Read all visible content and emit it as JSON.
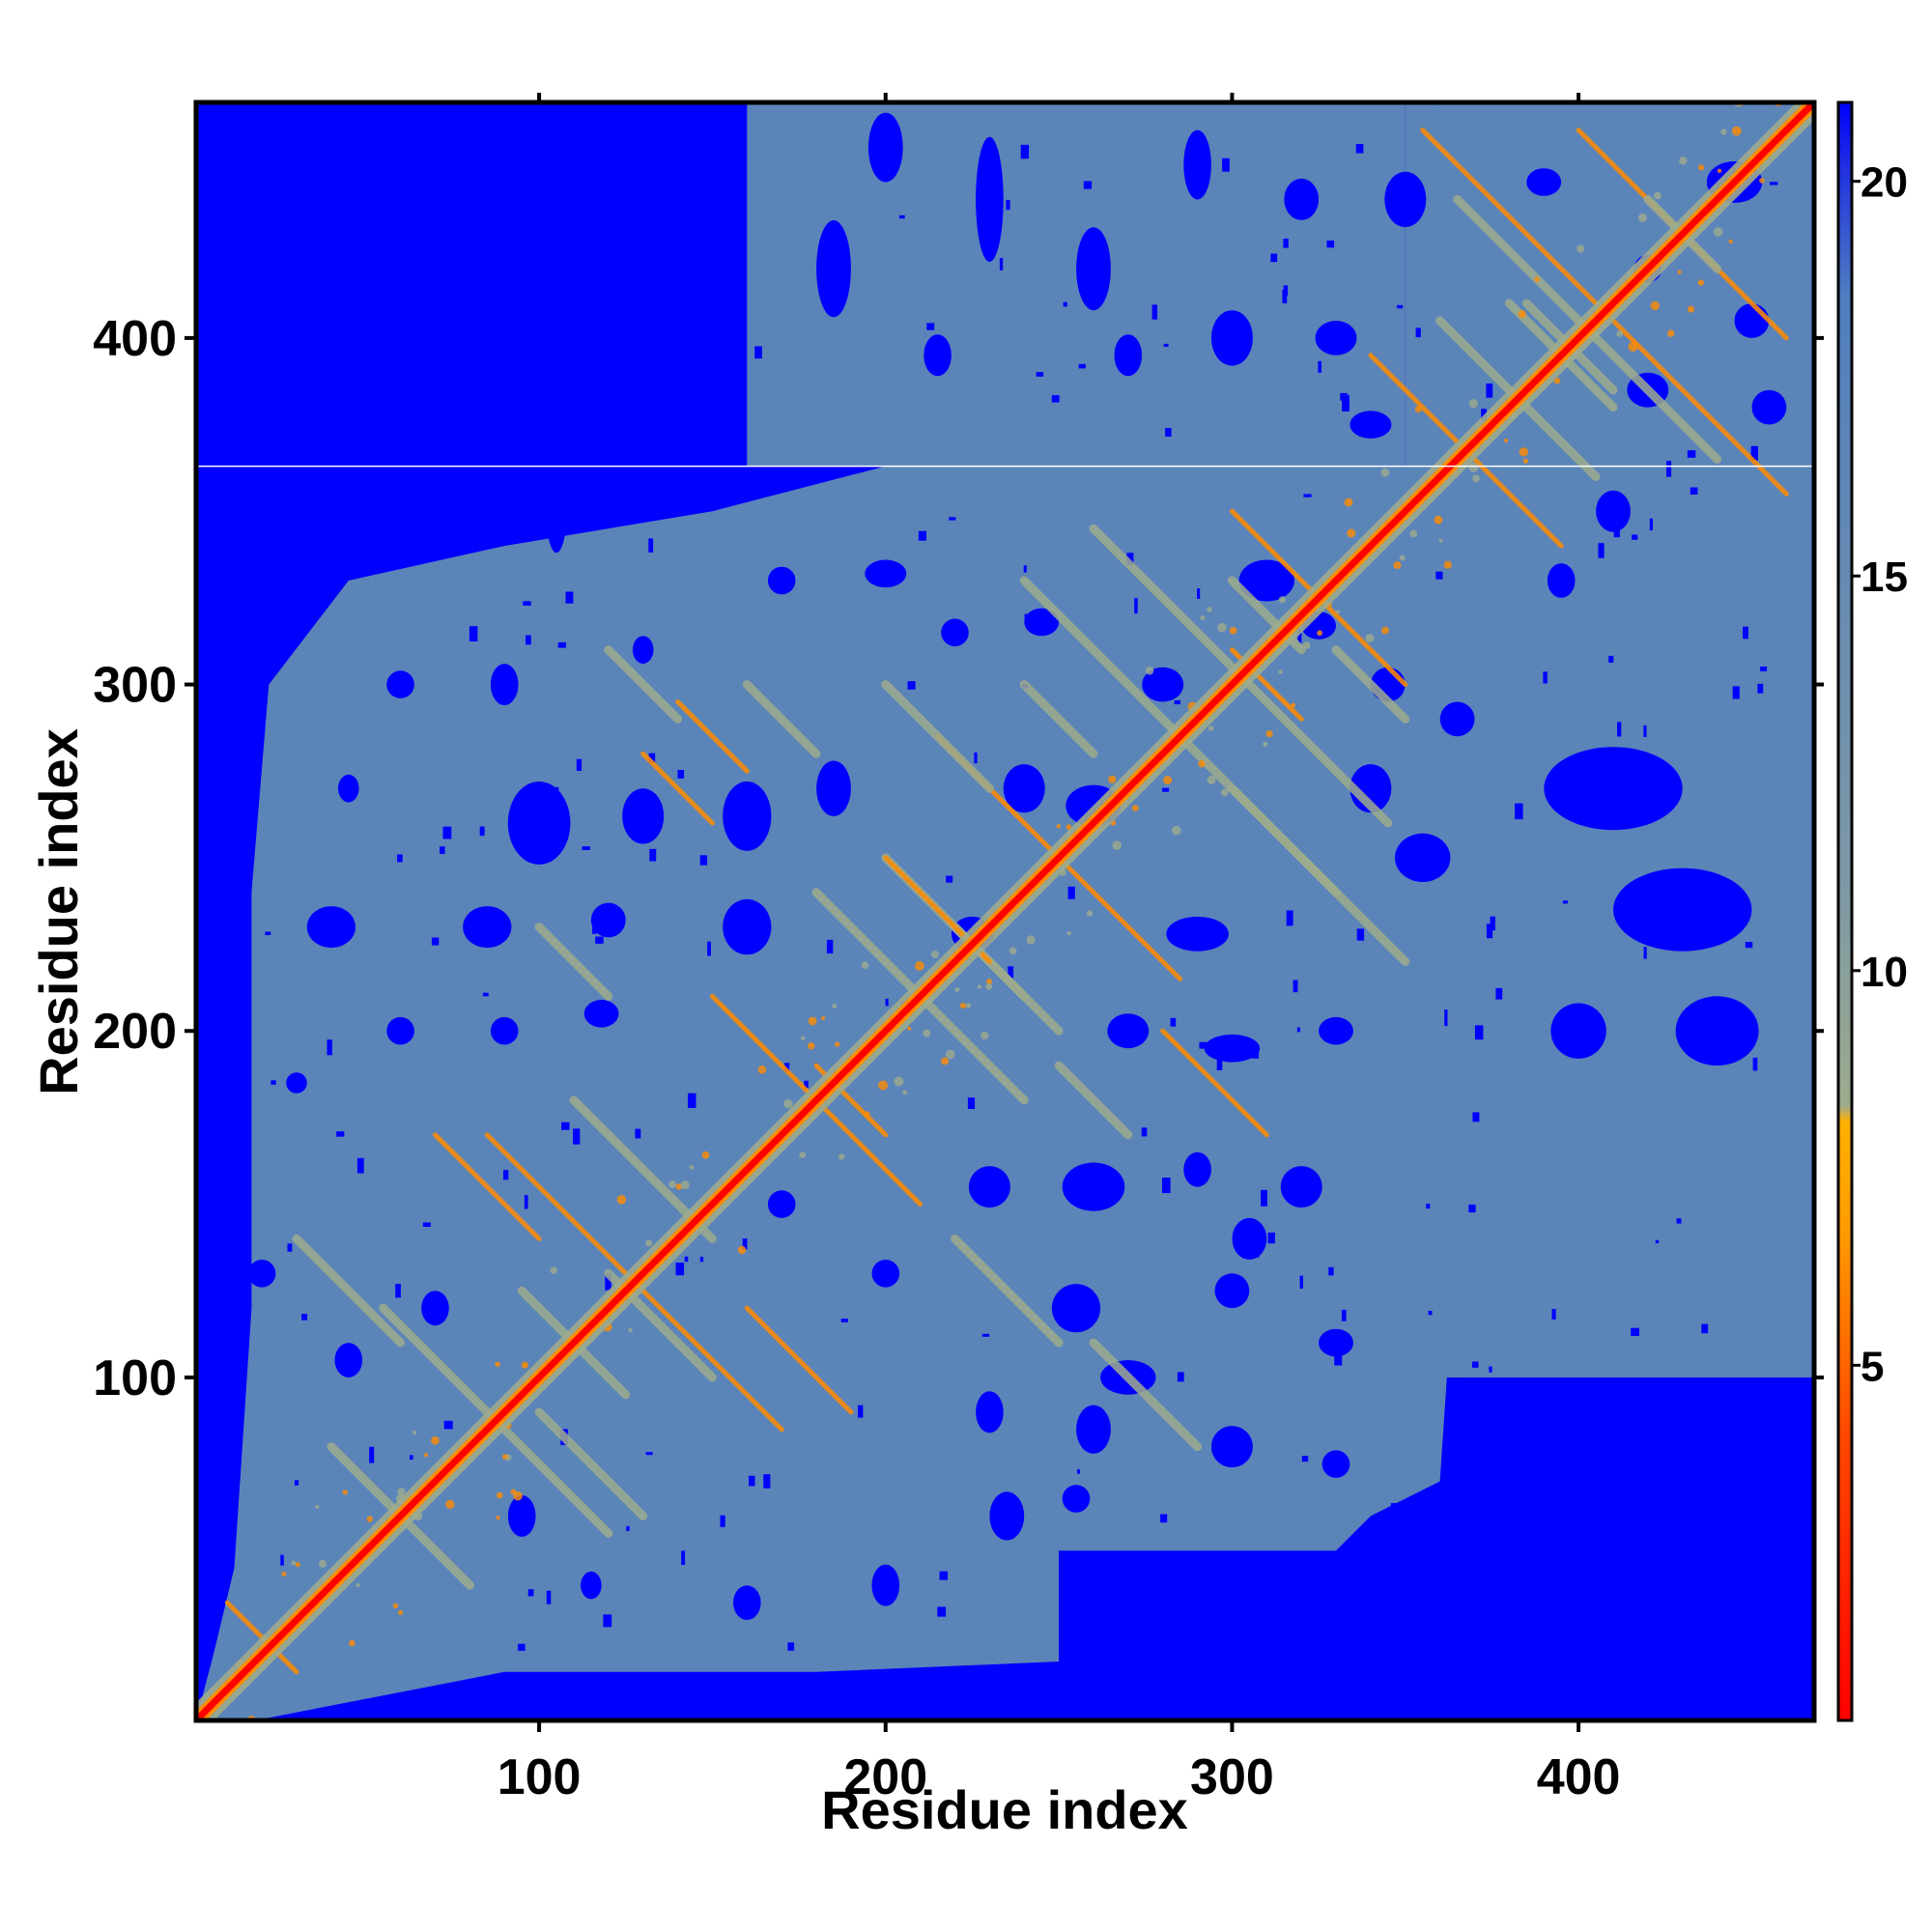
{
  "chart_data": {
    "type": "heatmap",
    "description_kind": "residue distance map",
    "xlabel": "Residue index",
    "ylabel": "Residue index",
    "xlim": [
      1,
      468
    ],
    "ylim": [
      1,
      468
    ],
    "x_ticks": [
      100,
      200,
      300,
      400
    ],
    "y_ticks": [
      100,
      200,
      300,
      400
    ],
    "x_tick_labels": [
      "100",
      "200",
      "300",
      "400"
    ],
    "y_tick_labels": [
      "100",
      "200",
      "300",
      "400"
    ],
    "colorbar": {
      "range": [
        0.5,
        21
      ],
      "ticks": [
        5,
        10,
        15,
        20
      ],
      "tick_labels": [
        "5",
        "10",
        "15",
        "20"
      ],
      "colors": {
        "near": "#ff0000",
        "mid_near": "#ff8c00",
        "mid": "#9dab8d",
        "far": "#5b84b8",
        "beyond": "#0000ff"
      }
    },
    "diagonal_color": "#ff0000",
    "horizontal_line_at": 363,
    "horizontal_line_color": "#ffffff"
  }
}
